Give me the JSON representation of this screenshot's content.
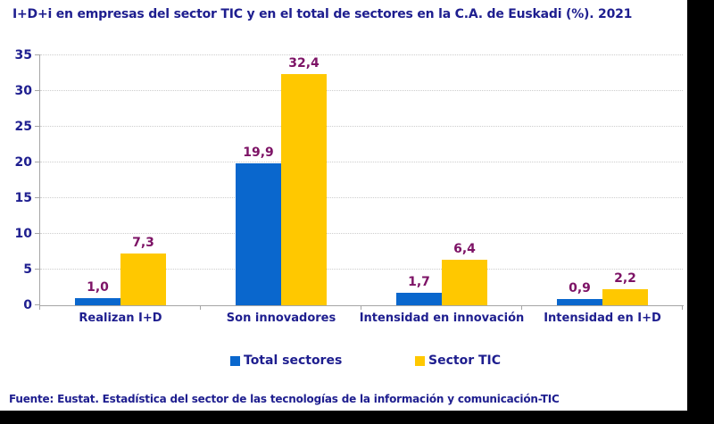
{
  "title": "I+D+i en empresas del sector TIC y en el total de sectores en la C.A. de Euskadi (%). 2021",
  "footer": "Fuente: Eustat. Estadística del sector de las tecnologías de la información y comunicación-TIC",
  "legend": {
    "items": [
      {
        "label": "Total sectores",
        "color": "#0A67CD"
      },
      {
        "label": "Sector TIC",
        "color": "#FFC800"
      }
    ]
  },
  "colors": {
    "heading_text": "#1E1E8F",
    "value_label_text": "#7D1366",
    "axis_line": "#A6A6A6",
    "gridline": "#CDCDCD",
    "background": "#FFFFFF",
    "frame": "#000000",
    "series_total_sectores": "#0A67CD",
    "series_sector_tic": "#FFC800"
  },
  "chart_data": {
    "type": "bar",
    "title": "I+D+i en empresas del sector TIC y en el total de sectores en la C.A. de Euskadi (%). 2021",
    "categories": [
      "Realizan I+D",
      "Son innovadores",
      "Intensidad en innovación",
      "Intensidad en I+D"
    ],
    "series": [
      {
        "name": "Total sectores",
        "color": "#0A67CD",
        "values": [
          1.0,
          19.9,
          1.7,
          0.9
        ],
        "value_labels": [
          "1,0",
          "19,9",
          "1,7",
          "0,9"
        ]
      },
      {
        "name": "Sector TIC",
        "color": "#FFC800",
        "values": [
          7.3,
          32.4,
          6.4,
          2.2
        ],
        "value_labels": [
          "7,3",
          "32,4",
          "6,4",
          "2,2"
        ]
      }
    ],
    "xlabel": "",
    "ylabel": "",
    "unit": "%",
    "ylim": [
      0,
      35
    ],
    "yticks": [
      0,
      5,
      10,
      15,
      20,
      25,
      30,
      35
    ],
    "grid": true,
    "grid_style": "dotted",
    "legend_position": "bottom"
  }
}
